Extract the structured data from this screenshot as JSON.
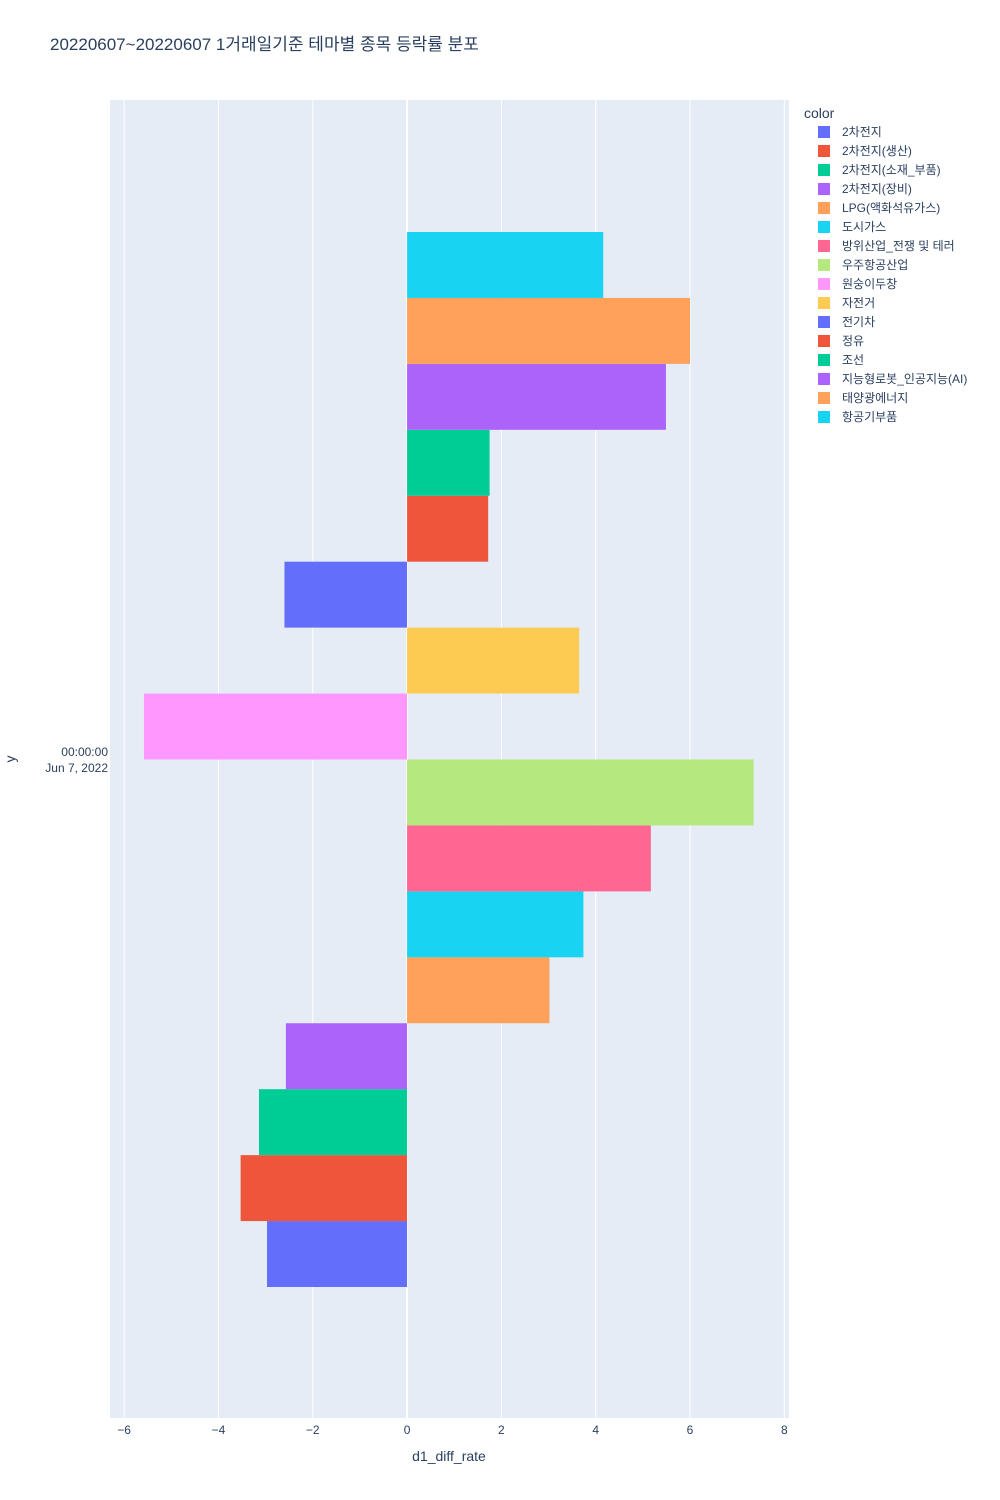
{
  "chart_data": {
    "type": "bar",
    "orientation": "horizontal",
    "title": "20220607~20220607 1거래일기준 테마별 종목 등락률 분포",
    "xlabel": "d1_diff_rate",
    "ylabel": "y",
    "xlim": [
      -6.3,
      8.1
    ],
    "xticks": [
      -6,
      -4,
      -2,
      0,
      2,
      4,
      6,
      8
    ],
    "xtick_labels": [
      "−6",
      "−4",
      "−2",
      "0",
      "2",
      "4",
      "6",
      "8"
    ],
    "y_category_label": [
      "00:00:00",
      "Jun 7, 2022"
    ],
    "legend_title": "color",
    "series": [
      {
        "name": "2차전지",
        "value": -2.97,
        "color": "#636EFA"
      },
      {
        "name": "2차전지(생산)",
        "value": -3.53,
        "color": "#EF553B"
      },
      {
        "name": "2차전지(소재_부품)",
        "value": -3.14,
        "color": "#00CC96"
      },
      {
        "name": "2차전지(장비)",
        "value": -2.57,
        "color": "#AB63FA"
      },
      {
        "name": "LPG(액화석유가스)",
        "value": 3.02,
        "color": "#FFA15A"
      },
      {
        "name": "도시가스",
        "value": 3.74,
        "color": "#19D3F3"
      },
      {
        "name": "방위산업_전쟁 및 테러",
        "value": 5.17,
        "color": "#FF6692"
      },
      {
        "name": "우주항공산업",
        "value": 7.35,
        "color": "#B6E880"
      },
      {
        "name": "원숭이두창",
        "value": -5.58,
        "color": "#FF97FF"
      },
      {
        "name": "자전거",
        "value": 3.65,
        "color": "#FECB52"
      },
      {
        "name": "전기차",
        "value": -2.6,
        "color": "#636EFA"
      },
      {
        "name": "정유",
        "value": 1.72,
        "color": "#EF553B"
      },
      {
        "name": "조선",
        "value": 1.75,
        "color": "#00CC96"
      },
      {
        "name": "지능형로봇_인공지능(AI)",
        "value": 5.49,
        "color": "#AB63FA"
      },
      {
        "name": "태양광에너지",
        "value": 6.0,
        "color": "#FFA15A"
      },
      {
        "name": "항공기부품",
        "value": 4.16,
        "color": "#19D3F3"
      }
    ]
  }
}
